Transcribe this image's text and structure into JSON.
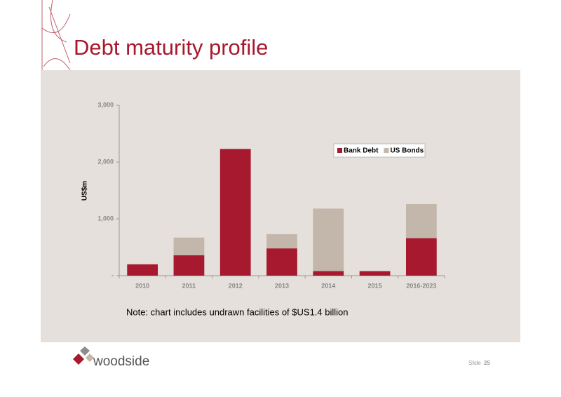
{
  "chart_data": {
    "type": "stacked_bar",
    "title": "Debt maturity profile",
    "y_label": "US$m",
    "categories": [
      "2010",
      "2011",
      "2012",
      "2013",
      "2014",
      "2015",
      "2016-2023"
    ],
    "series": [
      {
        "name": "Bank Debt",
        "color": "#a6192e",
        "values": [
          200,
          360,
          2230,
          480,
          80,
          80,
          660
        ]
      },
      {
        "name": "US Bonds",
        "color": "#c3b7ab",
        "values": [
          0,
          310,
          0,
          250,
          1100,
          0,
          600
        ]
      }
    ],
    "ylim": [
      0,
      3000
    ],
    "yticks": [
      {
        "value": 0,
        "label": "-"
      },
      {
        "value": 1000,
        "label": "1,000"
      },
      {
        "value": 2000,
        "label": "2,000"
      },
      {
        "value": 3000,
        "label": "3,000"
      }
    ],
    "grid": false,
    "legend": "upper right",
    "note": "Note: chart includes undrawn facilities of $US1.4 billion"
  },
  "footer": {
    "logo_text": "woodside",
    "slide_label": "Slide",
    "slide_number": "25"
  }
}
